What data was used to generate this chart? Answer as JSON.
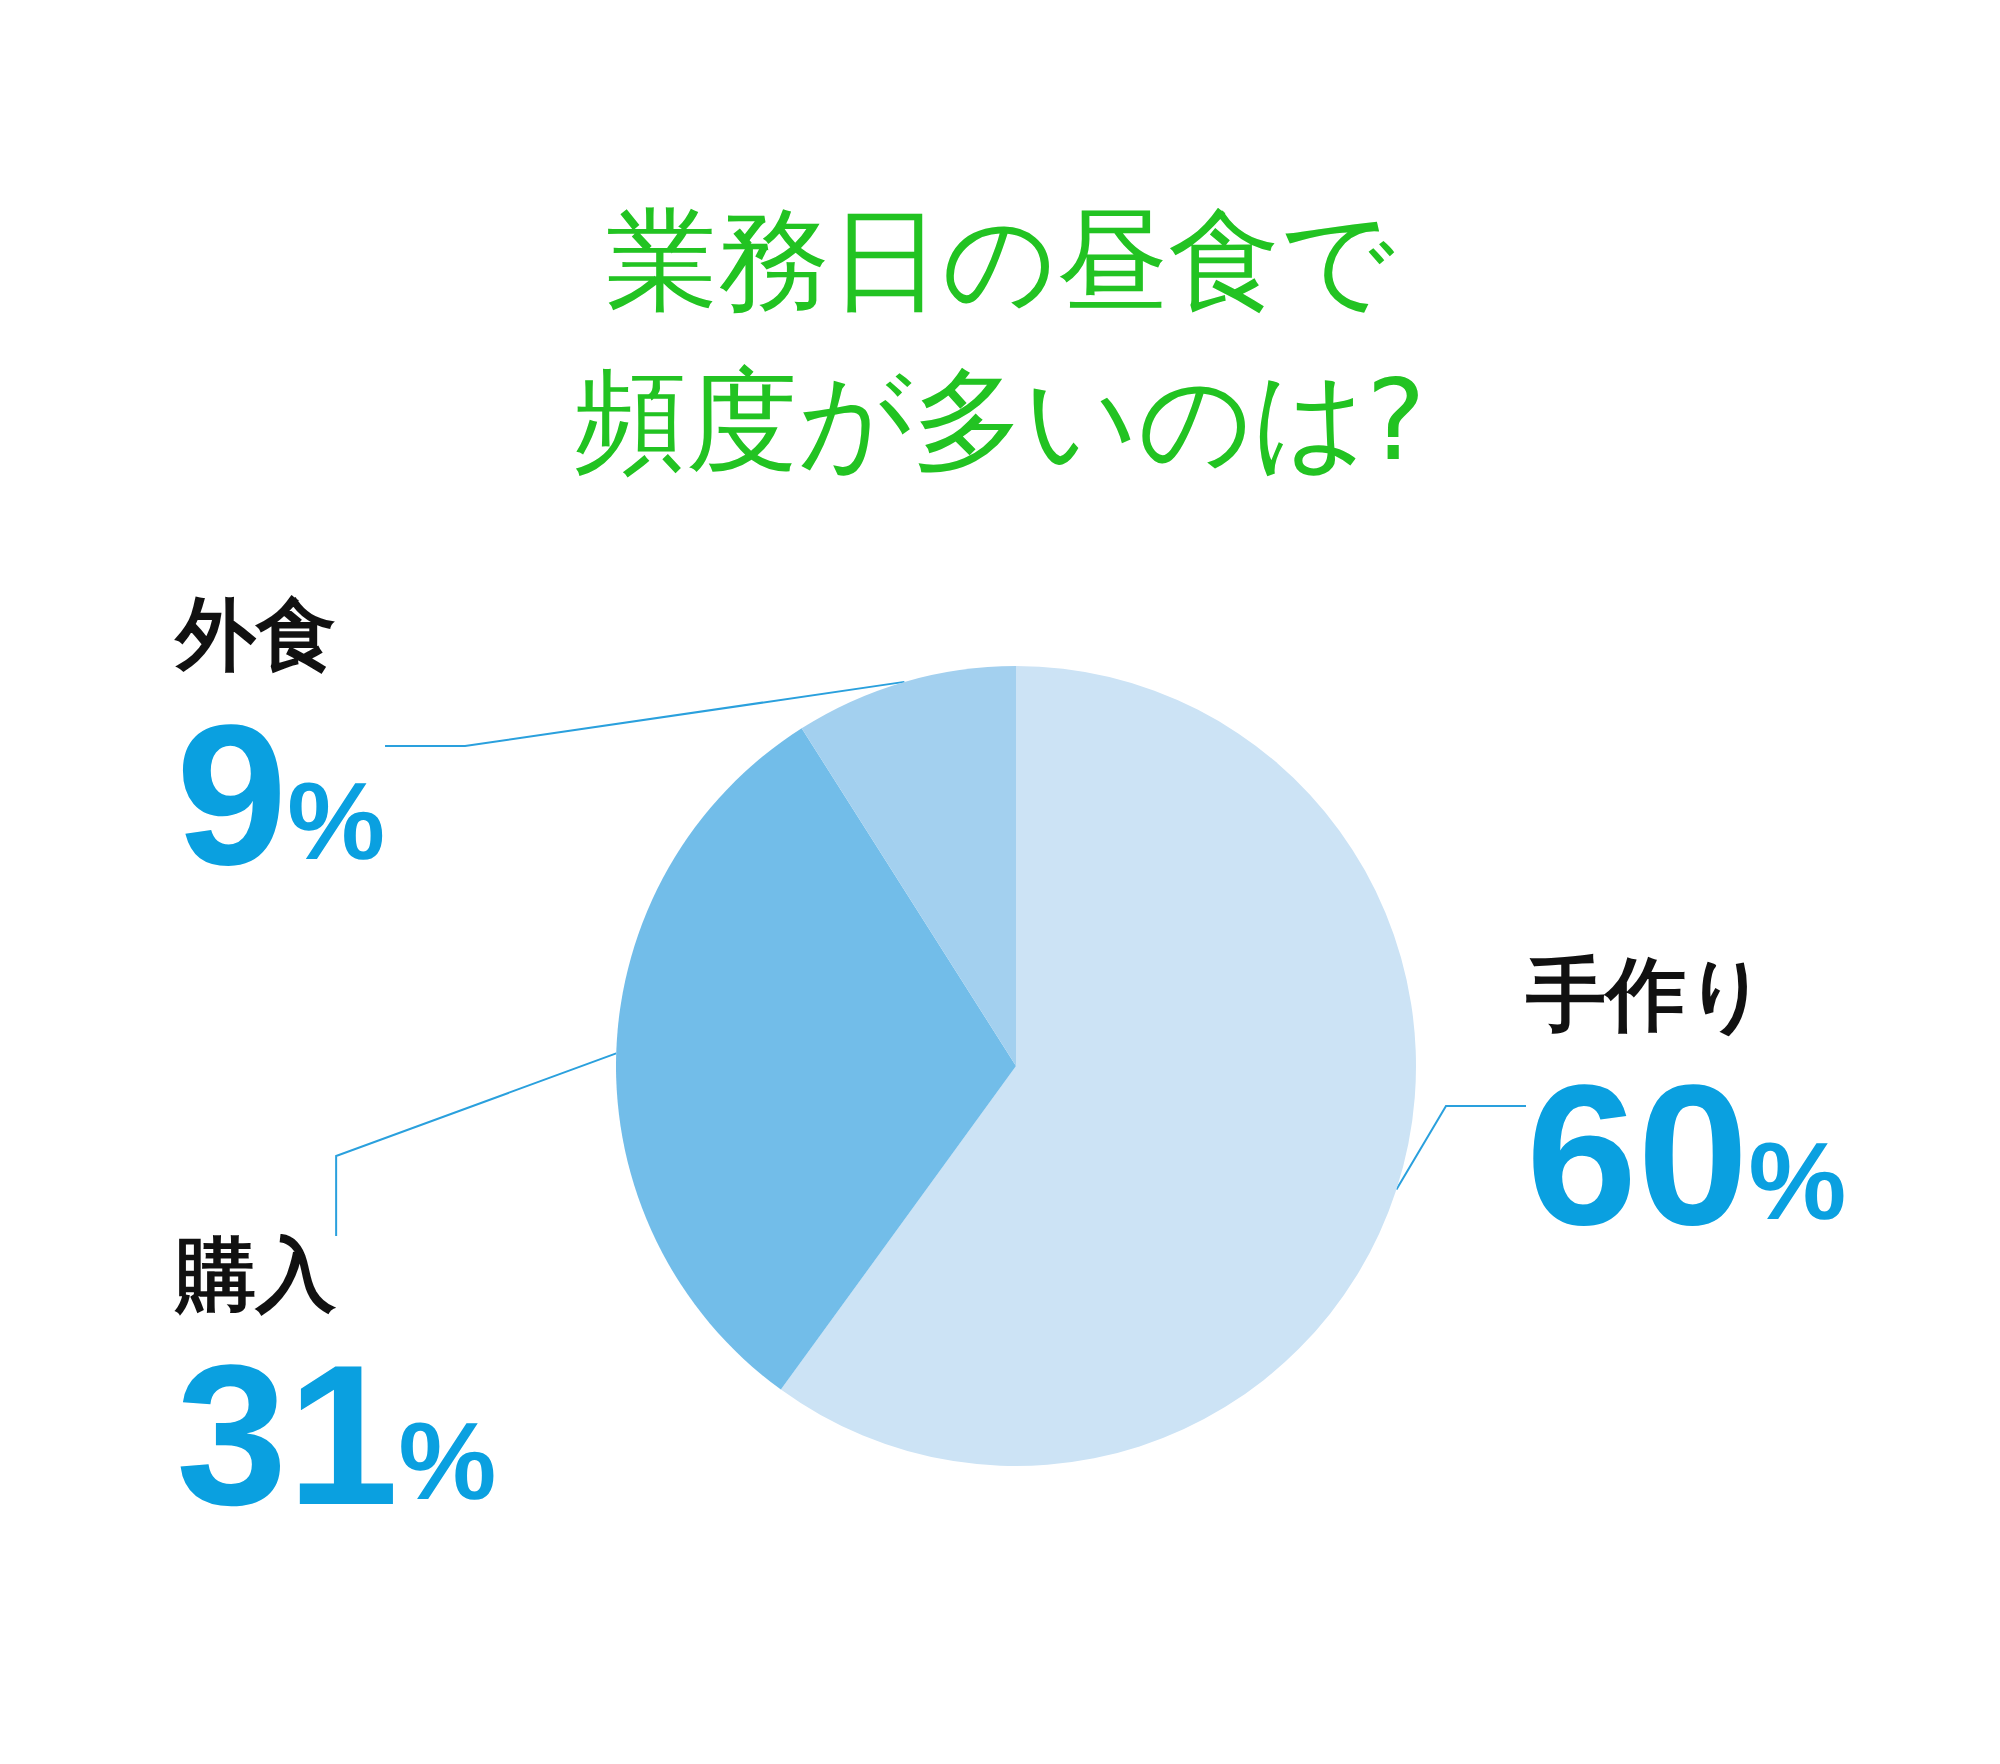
{
  "chart_data": {
    "type": "pie",
    "title": "業務日の昼食で頻度が多いのは?",
    "categories": [
      "手作り",
      "購入",
      "外食"
    ],
    "values": [
      60,
      31,
      9
    ],
    "colors": [
      "#cce3f5",
      "#72bde9",
      "#a3d0ef"
    ],
    "value_labels": [
      "60%",
      "31%",
      "9%"
    ],
    "legend": false
  }
}
